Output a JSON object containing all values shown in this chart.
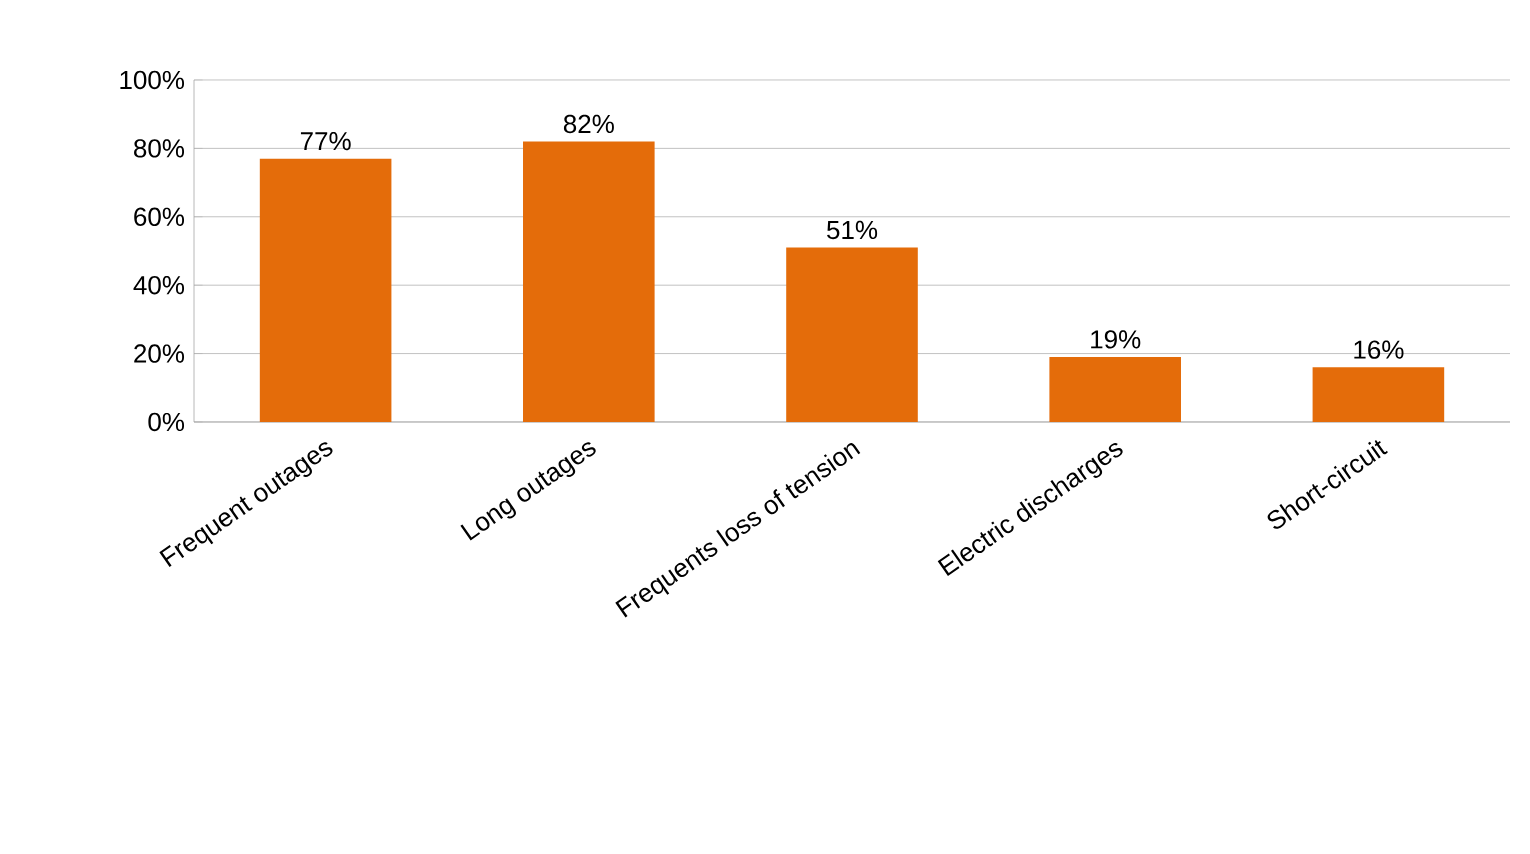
{
  "chart_data": {
    "type": "bar",
    "categories": [
      "Frequent outages",
      "Long outages",
      "Frequents loss of tension",
      "Electric discharges",
      "Short-circuit"
    ],
    "values": [
      77,
      82,
      51,
      19,
      16
    ],
    "value_labels": [
      "77%",
      "82%",
      "51%",
      "19%",
      "16%"
    ],
    "color": "#e46c0a",
    "ylim": [
      0,
      100
    ],
    "yticks": [
      {
        "value": 0,
        "label": "0%"
      },
      {
        "value": 20,
        "label": "20%"
      },
      {
        "value": 40,
        "label": "40%"
      },
      {
        "value": 60,
        "label": "60%"
      },
      {
        "value": 80,
        "label": "80%"
      },
      {
        "value": 100,
        "label": "100%"
      }
    ],
    "grid": "y"
  }
}
